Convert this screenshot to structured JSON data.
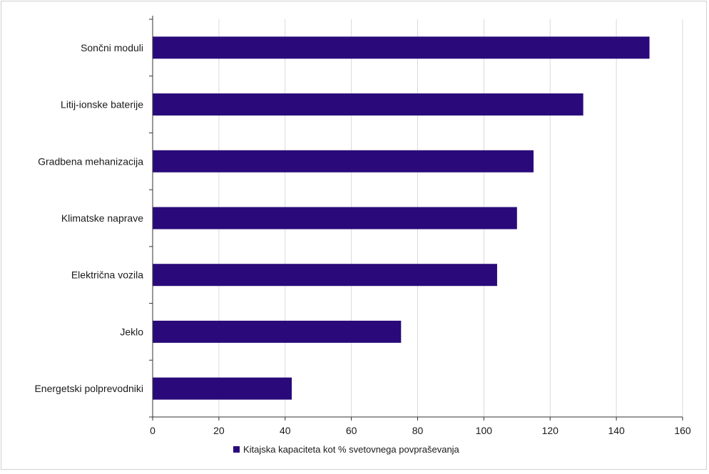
{
  "colors": {
    "bar": "#2a0a7a",
    "grid": "#d9d9d9",
    "axis": "#333333"
  },
  "chart_data": {
    "type": "bar",
    "orientation": "horizontal",
    "title": "",
    "xlabel": "",
    "ylabel": "",
    "categories": [
      "Sončni moduli",
      "Litij-ionske baterije",
      "Gradbena mehanizacija",
      "Klimatske naprave",
      "Električna vozila",
      "Jeklo",
      "Energetski polprevodniki"
    ],
    "series": [
      {
        "name": "Kitajska kapaciteta kot % svetovnega povpraševanja",
        "values": [
          150,
          130,
          115,
          110,
          104,
          75,
          42
        ]
      }
    ],
    "xlim": [
      0,
      160
    ],
    "xticks": [
      0,
      20,
      40,
      60,
      80,
      100,
      120,
      140,
      160
    ],
    "grid": "vertical",
    "legend_position": "bottom"
  }
}
